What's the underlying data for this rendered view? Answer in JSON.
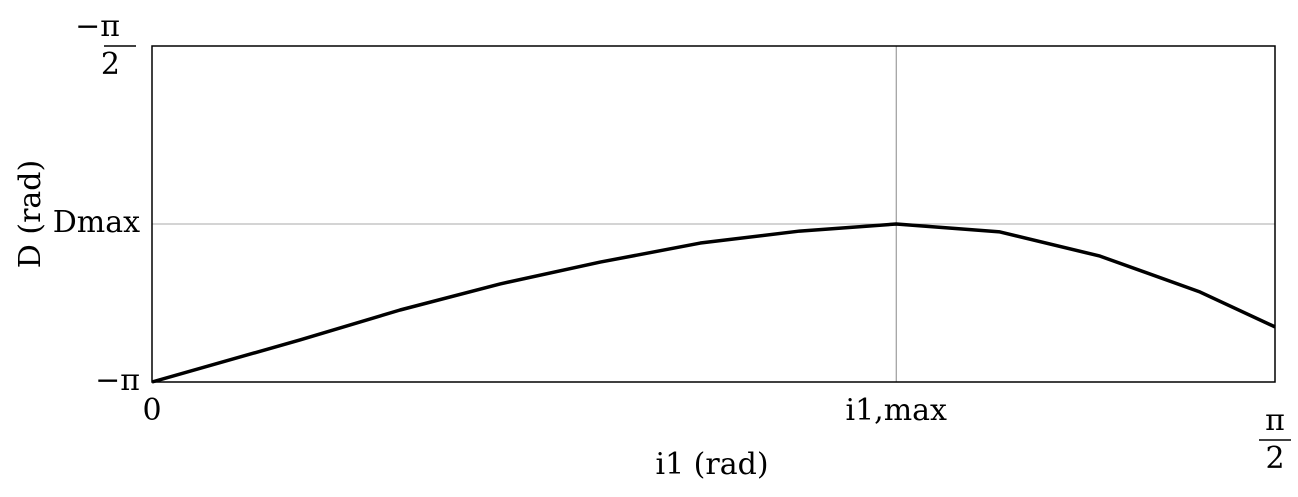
{
  "chart_data": {
    "type": "line",
    "xlabel": "i1 (rad)",
    "ylabel": "D (rad)",
    "x": [
      0,
      0.207,
      0.347,
      0.487,
      0.627,
      0.767,
      0.906,
      1.041,
      1.186,
      1.326,
      1.466,
      1.5708
    ],
    "series": [
      {
        "name": "D",
        "color": "#000000",
        "values": [
          -3.1416,
          -2.945,
          -2.805,
          -2.683,
          -2.581,
          -2.492,
          -2.436,
          -2.403,
          -2.44,
          -2.553,
          -2.721,
          -2.884
        ]
      }
    ],
    "xlim": [
      0,
      1.5708
    ],
    "ylim": [
      -3.1416,
      -1.5708
    ],
    "xticks": [
      0,
      {
        "value": 1.041,
        "label": "i1,max"
      },
      {
        "value": 1.5708,
        "label": "π/2"
      }
    ],
    "yticks": [
      {
        "value": -3.1416,
        "label": "−π"
      },
      {
        "value": -2.403,
        "label": "Dmax"
      },
      {
        "value": -1.5708,
        "label": "−π/2"
      }
    ],
    "grid": true
  }
}
